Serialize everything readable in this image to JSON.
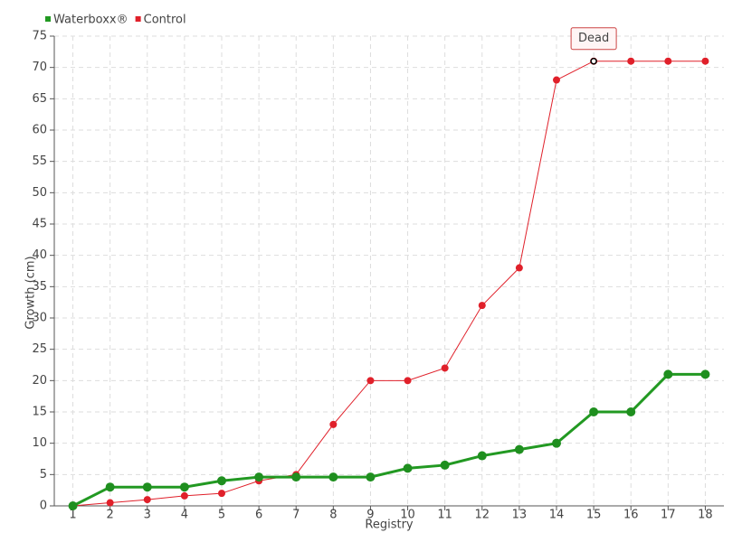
{
  "chart_data": {
    "type": "line",
    "categories": [
      "1",
      "2",
      "3",
      "4",
      "5",
      "6",
      "7",
      "8",
      "9",
      "10",
      "11",
      "12",
      "13",
      "14",
      "15",
      "16",
      "17",
      "18"
    ],
    "series": [
      {
        "name": "Waterboxx®",
        "color": "#229922",
        "values": [
          0,
          3,
          3,
          3,
          4,
          4.6,
          4.6,
          4.6,
          4.6,
          6,
          6.5,
          8,
          9,
          10,
          15,
          15,
          21,
          21
        ]
      },
      {
        "name": "Control",
        "color": "#e0202a",
        "values": [
          0,
          0.5,
          1,
          1.6,
          2,
          4,
          5,
          13,
          20,
          20,
          22,
          32,
          38,
          68,
          71,
          71,
          71,
          71
        ]
      }
    ],
    "ylim": [
      0,
      75
    ],
    "yticks": [
      0,
      5,
      10,
      15,
      20,
      25,
      30,
      35,
      40,
      45,
      50,
      55,
      60,
      65,
      70,
      75
    ],
    "xlabel": "Registry",
    "ylabel": "Growth (cm)",
    "annotation": "Dead",
    "grid": true,
    "legend": "top-left"
  }
}
